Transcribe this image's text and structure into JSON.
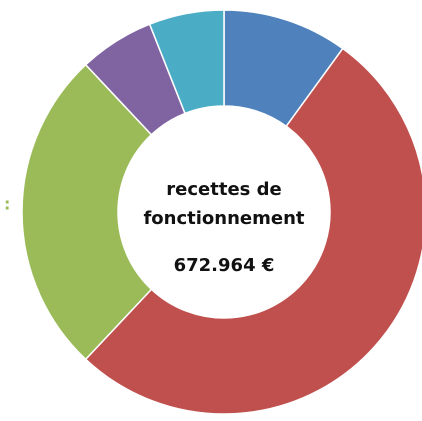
{
  "chart_data": {
    "type": "donut",
    "title_lines": [
      "recettes de",
      "fonctionnement"
    ],
    "total_label": "672.964 €",
    "annotation": ":",
    "values": [
      10,
      52,
      26,
      6,
      6
    ],
    "colors": [
      "#4f81bd",
      "#c0504d",
      "#9bbb59",
      "#8064a2",
      "#4bacc6"
    ]
  }
}
